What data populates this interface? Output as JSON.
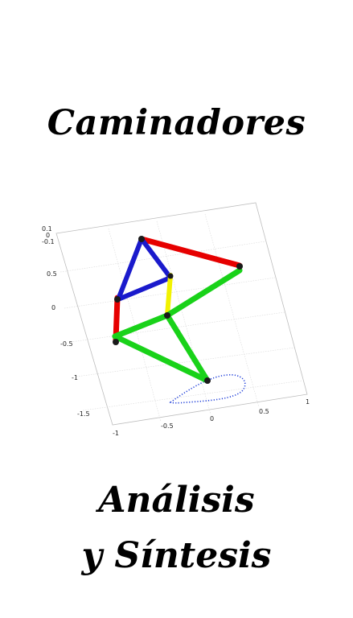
{
  "title": "Caminadores",
  "subtitle_line1": "Análisis",
  "subtitle_line2": "y Síntesis",
  "figure": {
    "z_ticks": [
      "0.1",
      "0",
      "-0.1"
    ],
    "y_ticks": [
      "0.5",
      "0",
      "-0.5",
      "-1",
      "-1.5"
    ],
    "x_front_ticks": [
      "-1",
      "-0.5",
      "0",
      "0.5",
      "1"
    ],
    "colors": {
      "red": "#e60000",
      "blue": "#1a1acc",
      "green": "#19d219",
      "yellow": "#f2f200",
      "trace": "#1f3fd9",
      "joint": "#1a1a1a"
    }
  }
}
